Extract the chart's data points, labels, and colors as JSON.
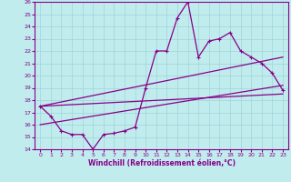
{
  "xlabel": "Windchill (Refroidissement éolien,°C)",
  "background_color": "#c0ecee",
  "grid_color": "#a0d4d8",
  "line_color": "#880088",
  "xlim": [
    -0.5,
    23.5
  ],
  "ylim": [
    14,
    26
  ],
  "xticks": [
    0,
    1,
    2,
    3,
    4,
    5,
    6,
    7,
    8,
    9,
    10,
    11,
    12,
    13,
    14,
    15,
    16,
    17,
    18,
    19,
    20,
    21,
    22,
    23
  ],
  "yticks": [
    14,
    15,
    16,
    17,
    18,
    19,
    20,
    21,
    22,
    23,
    24,
    25,
    26
  ],
  "line1_x": [
    0,
    1,
    2,
    3,
    4,
    5,
    6,
    7,
    8,
    9,
    10,
    11,
    12,
    13,
    14,
    15,
    16,
    17,
    18,
    19,
    20,
    21,
    22,
    23
  ],
  "line1_y": [
    17.5,
    16.7,
    15.5,
    15.2,
    15.2,
    14.0,
    15.2,
    15.3,
    15.5,
    15.8,
    19.0,
    22.0,
    22.0,
    24.7,
    26.0,
    21.5,
    22.8,
    23.0,
    23.5,
    22.0,
    21.5,
    21.0,
    20.2,
    18.8
  ],
  "line2_x": [
    0,
    23
  ],
  "line2_y": [
    17.5,
    18.5
  ],
  "line3_x": [
    0,
    23
  ],
  "line3_y": [
    17.5,
    21.5
  ],
  "line4_x": [
    0,
    23
  ],
  "line4_y": [
    16.0,
    19.2
  ]
}
